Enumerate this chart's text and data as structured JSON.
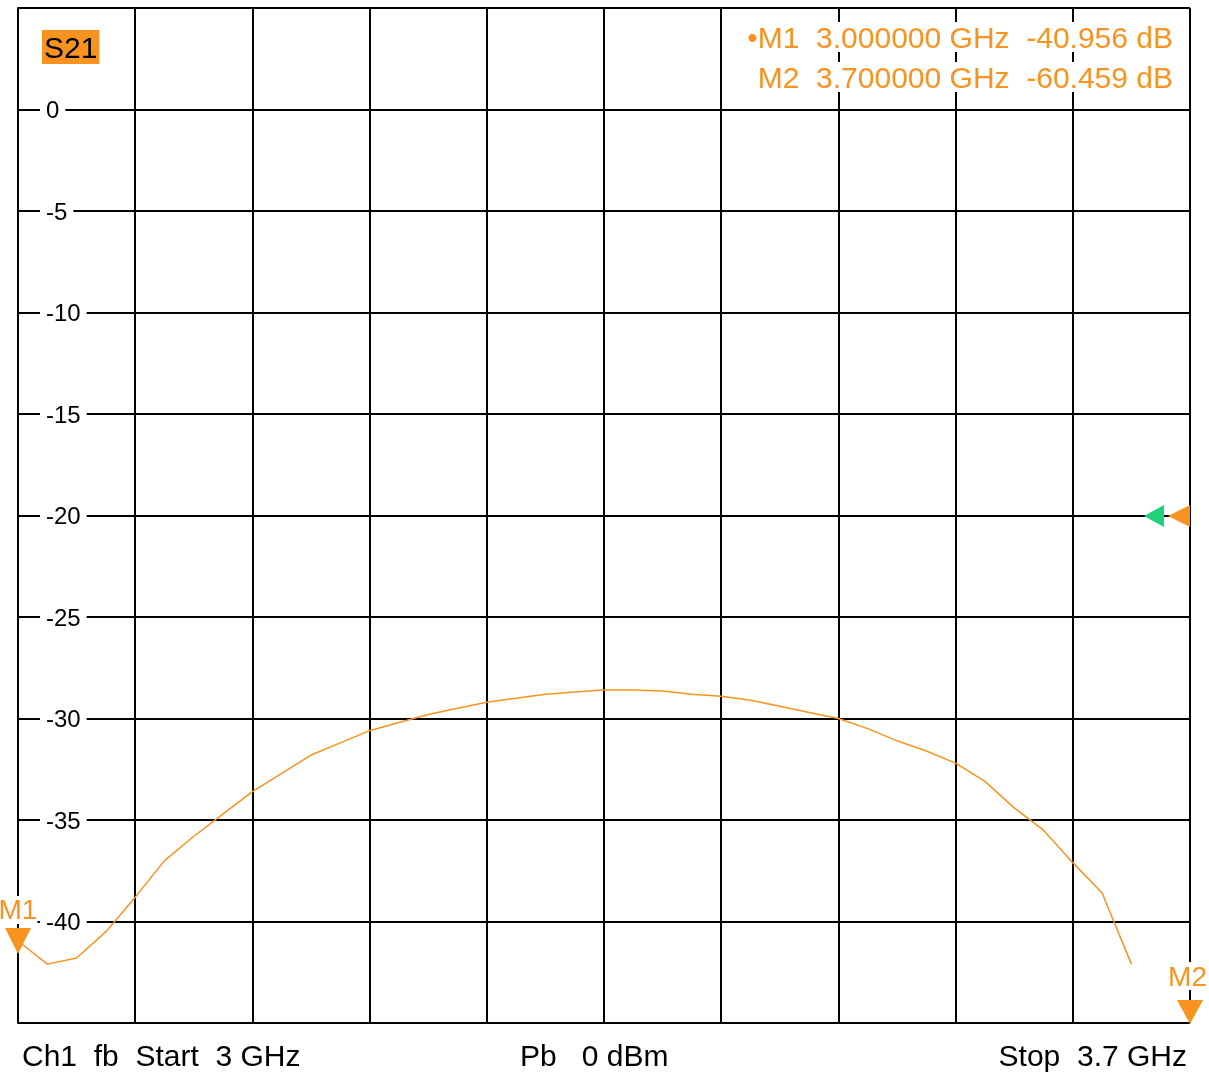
{
  "chart_data": {
    "type": "line",
    "categories": [
      null,
      null,
      null,
      null,
      null,
      null,
      null,
      null,
      null,
      null,
      null,
      null,
      null,
      null,
      null,
      null,
      null,
      null,
      null,
      null,
      null,
      null,
      null,
      null,
      null,
      null,
      null,
      null,
      null,
      null,
      null,
      null,
      null,
      null,
      null,
      null,
      null,
      null,
      null,
      null,
      null
    ],
    "series": [
      {
        "color": "#f7931e",
        "values": [
          -40.96,
          -42.1,
          -41.8,
          -40.5,
          -38.8,
          -37.0,
          -35.8,
          -34.7,
          -33.6,
          -32.7,
          -31.8,
          -31.2,
          -30.6,
          -30.2,
          -29.8,
          -29.5,
          -29.2,
          -29.0,
          -28.8,
          -28.7,
          -28.6,
          -28.6,
          -28.65,
          -28.8,
          -28.9,
          -29.1,
          -29.4,
          -29.7,
          -30.0,
          -30.5,
          -31.1,
          -31.6,
          -32.2,
          -33.1,
          -34.4,
          -35.5,
          -37.1,
          -38.6,
          -42.1,
          null,
          null
        ]
      }
    ],
    "ylim": [
      -45,
      5
    ],
    "yticks": [
      {
        "value": -45,
        "label": null
      },
      -40,
      -35,
      -30,
      -25,
      -20,
      -15,
      -10,
      -5,
      0,
      {
        "value": 5,
        "label": null
      }
    ],
    "tick_labels": "y",
    "grid": true,
    "marker": "none",
    "line_style": "solid",
    "annotations": [
      "S21",
      "•M1  3.000000 GHz  -40.956 dB",
      "M2  3.700000 GHz  -60.459 dB",
      "Ch1  fb  Start  3 GHz",
      "Pb   0 dBm",
      "Stop  3.7 GHz",
      "M2",
      {
        "text": "M1",
        "y": -40.956
      }
    ]
  }
}
